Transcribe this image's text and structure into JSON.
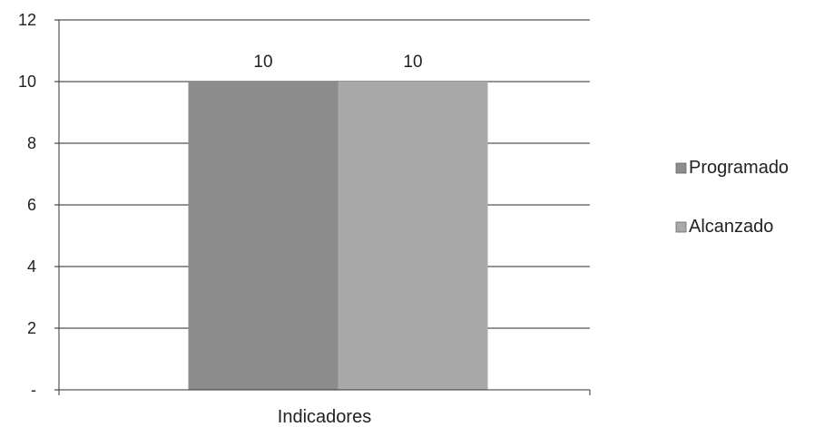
{
  "chart_data": {
    "type": "bar",
    "categories": [
      "Indicadores"
    ],
    "series": [
      {
        "name": "Programado",
        "values": [
          10
        ],
        "color": "#8c8c8c"
      },
      {
        "name": "Alcanzado",
        "values": [
          10
        ],
        "color": "#a9a9a9"
      }
    ],
    "ylim": [
      0,
      12
    ],
    "yticks": [
      0,
      2,
      4,
      6,
      8,
      10,
      12
    ],
    "ytick_labels": [
      "-",
      "2",
      "4",
      "6",
      "8",
      "10",
      "12"
    ],
    "data_labels": [
      "10",
      "10"
    ],
    "xlabel": "Indicadores",
    "grid": true,
    "legend": "right"
  }
}
